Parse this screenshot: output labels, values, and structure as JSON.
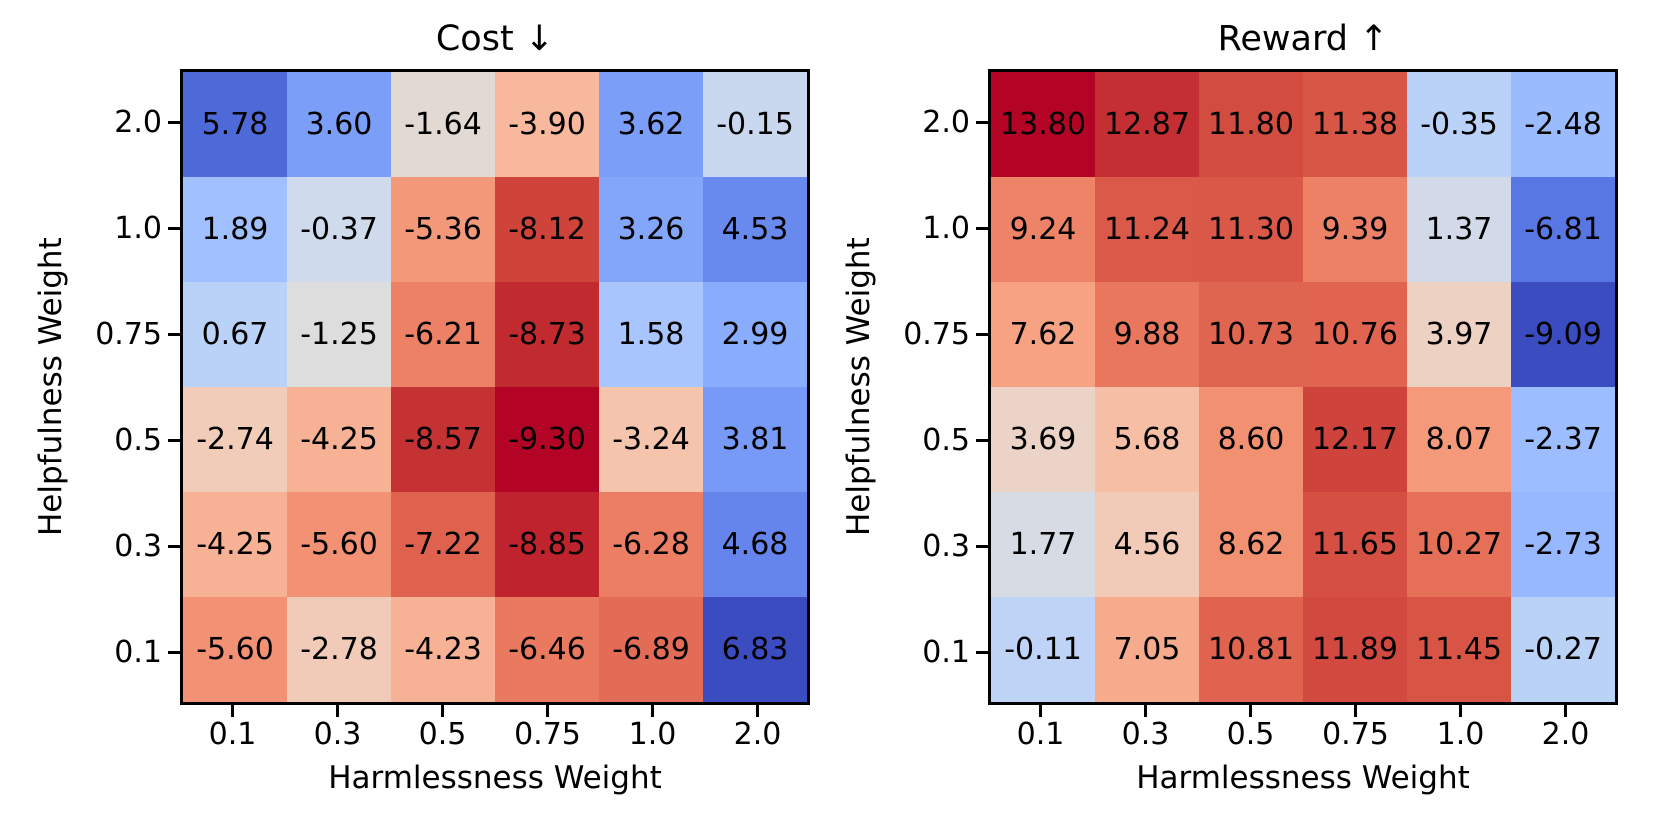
{
  "figure": {
    "background_color": "#ffffff",
    "text_color": "#000000"
  },
  "chart_data": [
    {
      "type": "heatmap",
      "title": "Cost ↓",
      "xlabel": "Harmlessness Weight",
      "ylabel": "Helpfulness Weight",
      "x_tick_labels": [
        "0.1",
        "0.3",
        "0.5",
        "0.75",
        "1.0",
        "2.0"
      ],
      "y_tick_labels": [
        "2.0",
        "1.0",
        "0.75",
        "0.5",
        "0.3",
        "0.1"
      ],
      "colormap": "coolwarm_r",
      "vmin": -9.3,
      "vmax": 6.83,
      "annotation_decimals": 2,
      "values": [
        [
          5.78,
          3.6,
          -1.64,
          -3.9,
          3.62,
          -0.15
        ],
        [
          1.89,
          -0.37,
          -5.36,
          -8.12,
          3.26,
          4.53
        ],
        [
          0.67,
          -1.25,
          -6.21,
          -8.73,
          1.58,
          2.99
        ],
        [
          -2.74,
          -4.25,
          -8.57,
          -9.3,
          -3.24,
          3.81
        ],
        [
          -4.25,
          -5.6,
          -7.22,
          -8.85,
          -6.28,
          4.68
        ],
        [
          -5.6,
          -2.78,
          -4.23,
          -6.46,
          -6.89,
          6.83
        ]
      ]
    },
    {
      "type": "heatmap",
      "title": "Reward ↑",
      "xlabel": "Harmlessness Weight",
      "ylabel": "Helpfulness Weight",
      "x_tick_labels": [
        "0.1",
        "0.3",
        "0.5",
        "0.75",
        "1.0",
        "2.0"
      ],
      "y_tick_labels": [
        "2.0",
        "1.0",
        "0.75",
        "0.5",
        "0.3",
        "0.1"
      ],
      "colormap": "coolwarm",
      "vmin": -9.09,
      "vmax": 13.8,
      "annotation_decimals": 2,
      "values": [
        [
          13.8,
          12.87,
          11.8,
          11.38,
          -0.35,
          -2.48
        ],
        [
          9.24,
          11.24,
          11.3,
          9.39,
          1.37,
          -6.81
        ],
        [
          7.62,
          9.88,
          10.73,
          10.76,
          3.97,
          -9.09
        ],
        [
          3.69,
          5.68,
          8.6,
          12.17,
          8.07,
          -2.37
        ],
        [
          1.77,
          4.56,
          8.62,
          11.65,
          10.27,
          -2.73
        ],
        [
          -0.11,
          7.05,
          10.81,
          11.89,
          11.45,
          -0.27
        ]
      ]
    }
  ]
}
